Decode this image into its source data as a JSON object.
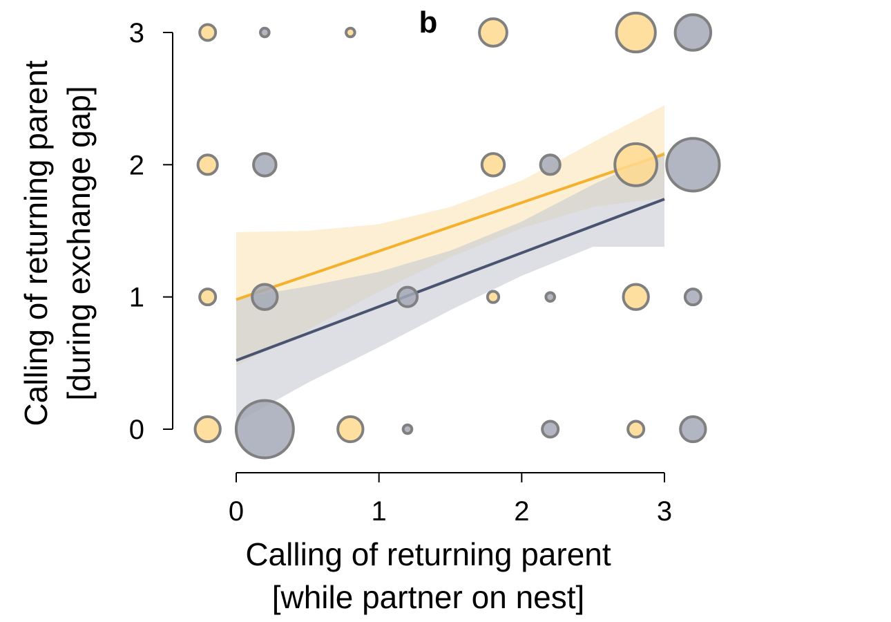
{
  "chart_data": {
    "type": "scatter",
    "panel_label": "b",
    "xlabel": [
      "Calling of returning parent",
      "[while partner on nest]"
    ],
    "ylabel": [
      "Calling of returning parent",
      "[during exchange gap]"
    ],
    "xlim": [
      0,
      3
    ],
    "ylim": [
      0,
      3
    ],
    "x_ticks": [
      "0",
      "1",
      "2",
      "3"
    ],
    "y_ticks": [
      "0",
      "1",
      "2",
      "3"
    ],
    "grid": false,
    "legend": "none",
    "colors": {
      "orange_fill": "#FFD98F",
      "grey_fill": "#A4A9B7",
      "point_stroke": "#808080",
      "orange_line": "#F5B02E",
      "grey_line": "#4A5470",
      "orange_band": "#FBE4B6",
      "grey_band": "#C6C9D2"
    },
    "series": [
      {
        "color_key": "orange",
        "points": [
          {
            "x": 0,
            "y": 3,
            "size": 1
          },
          {
            "x": 1,
            "y": 3,
            "size": 0.3
          },
          {
            "x": 2,
            "y": 3,
            "size": 3
          },
          {
            "x": 3,
            "y": 3,
            "size": 6
          },
          {
            "x": 0,
            "y": 2,
            "size": 1.5
          },
          {
            "x": 2,
            "y": 2,
            "size": 2
          },
          {
            "x": 3,
            "y": 2,
            "size": 7
          },
          {
            "x": 0,
            "y": 1,
            "size": 1
          },
          {
            "x": 2,
            "y": 1,
            "size": 0.5
          },
          {
            "x": 3,
            "y": 1,
            "size": 2.5
          },
          {
            "x": 0,
            "y": 0,
            "size": 2.5
          },
          {
            "x": 1,
            "y": 0,
            "size": 2.5
          },
          {
            "x": 3,
            "y": 0,
            "size": 1
          }
        ],
        "fit": {
          "x": [
            0,
            3
          ],
          "y": [
            0.98,
            2.08
          ]
        },
        "ci": {
          "x": [
            0,
            0.5,
            1,
            1.5,
            2,
            2.5,
            3
          ],
          "upper": [
            1.49,
            1.5,
            1.55,
            1.68,
            1.88,
            2.17,
            2.45
          ],
          "lower": [
            0.48,
            0.75,
            1.04,
            1.3,
            1.52,
            1.68,
            1.75
          ]
        }
      },
      {
        "color_key": "grey",
        "points": [
          {
            "x": 0,
            "y": 3,
            "size": 0.3
          },
          {
            "x": 3,
            "y": 3,
            "size": 5
          },
          {
            "x": 0,
            "y": 2,
            "size": 2
          },
          {
            "x": 2,
            "y": 2,
            "size": 1.5
          },
          {
            "x": 3,
            "y": 2,
            "size": 11
          },
          {
            "x": 0,
            "y": 1,
            "size": 2.5
          },
          {
            "x": 1,
            "y": 1,
            "size": 1.5
          },
          {
            "x": 2,
            "y": 1,
            "size": 0.3
          },
          {
            "x": 3,
            "y": 1,
            "size": 1
          },
          {
            "x": 0,
            "y": 0,
            "size": 13
          },
          {
            "x": 1,
            "y": 0,
            "size": 0.3
          },
          {
            "x": 2,
            "y": 0,
            "size": 1
          },
          {
            "x": 3,
            "y": 0,
            "size": 2.5
          }
        ],
        "fit": {
          "x": [
            0,
            3
          ],
          "y": [
            0.52,
            1.74
          ]
        },
        "ci": {
          "x": [
            0,
            0.5,
            1,
            1.5,
            2,
            2.5,
            3
          ],
          "upper": [
            0.99,
            1.08,
            1.19,
            1.35,
            1.57,
            1.85,
            2.1
          ],
          "lower": [
            0.05,
            0.35,
            0.62,
            0.9,
            1.16,
            1.38,
            1.38
          ]
        }
      }
    ]
  }
}
